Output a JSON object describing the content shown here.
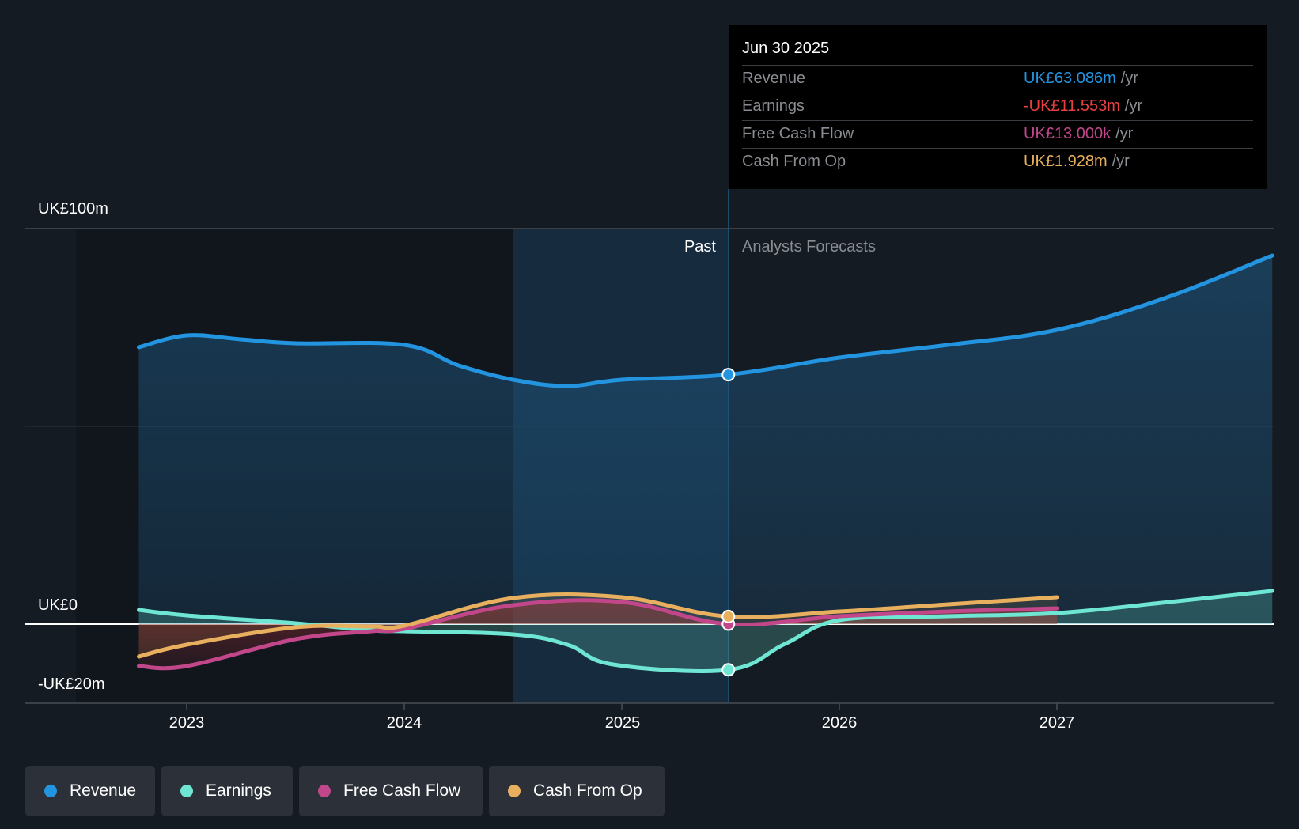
{
  "chart_data": {
    "type": "area",
    "title": "",
    "xlabel": "",
    "ylabel": "",
    "currency_unit": "UK£m",
    "ylim": [
      -20,
      100
    ],
    "y_ticks": [
      {
        "value": 100,
        "label": "UK£100m"
      },
      {
        "value": 0,
        "label": "UK£0"
      },
      {
        "value": -20,
        "label": "-UK£20m"
      }
    ],
    "xlim": [
      2022.5,
      2027.99
    ],
    "x_ticks": [
      2023,
      2024,
      2025,
      2026,
      2027
    ],
    "x_tick_labels": [
      "2023",
      "2024",
      "2025",
      "2026",
      "2027"
    ],
    "grid": true,
    "past_region": {
      "start": 2024.5,
      "end": 2025.49,
      "label": "Past"
    },
    "forecast_label": "Analysts Forecasts",
    "legend_placement": "bottom",
    "series": [
      {
        "name": "Revenue",
        "color": "#2394df",
        "x": [
          2022.78,
          2023.0,
          2023.25,
          2023.5,
          2024.0,
          2024.25,
          2024.5,
          2024.75,
          2025.0,
          2025.49,
          2026.0,
          2026.5,
          2027.0,
          2027.5,
          2027.99
        ],
        "values": [
          70.0,
          73.0,
          72.0,
          71.0,
          70.6,
          65.4,
          61.8,
          60.2,
          61.8,
          63.086,
          67.4,
          70.6,
          74.4,
          82.5,
          93.2
        ]
      },
      {
        "name": "Earnings",
        "color": "#6ee6d3",
        "x": [
          2022.78,
          2023.0,
          2023.5,
          2023.85,
          2024.0,
          2024.5,
          2024.75,
          2024.96,
          2025.49,
          2025.75,
          2026.0,
          2026.5,
          2027.0,
          2027.5,
          2027.99
        ],
        "values": [
          3.6,
          2.2,
          0.2,
          -1.6,
          -1.8,
          -2.6,
          -5.2,
          -10.2,
          -11.553,
          -5.0,
          1.0,
          2.0,
          2.8,
          5.5,
          8.4
        ]
      },
      {
        "name": "Free Cash Flow",
        "color": "#c2478a",
        "x": [
          2022.78,
          2023.0,
          2023.5,
          2023.85,
          2024.0,
          2024.5,
          2025.0,
          2025.49,
          2026.0,
          2026.5,
          2027.0
        ],
        "values": [
          -10.6,
          -10.6,
          -3.8,
          -1.8,
          -1.2,
          4.8,
          5.6,
          0.013,
          2.0,
          3.2,
          4.0
        ]
      },
      {
        "name": "Cash From Op",
        "color": "#e8b05e",
        "x": [
          2022.78,
          2023.0,
          2023.5,
          2023.85,
          2024.0,
          2024.5,
          2025.0,
          2025.49,
          2026.0,
          2026.5,
          2027.0
        ],
        "values": [
          -8.2,
          -5.2,
          -0.8,
          -0.6,
          -0.4,
          6.6,
          6.8,
          1.928,
          3.2,
          5.0,
          6.8
        ]
      }
    ],
    "highlight_x": 2025.49
  },
  "tooltip": {
    "date": "Jun 30 2025",
    "rows": [
      {
        "label": "Revenue",
        "value": "UK£63.086m",
        "unit": "/yr",
        "color": "#2394df"
      },
      {
        "label": "Earnings",
        "value": "-UK£11.553m",
        "unit": "/yr",
        "color": "#e9403f"
      },
      {
        "label": "Free Cash Flow",
        "value": "UK£13.000k",
        "unit": "/yr",
        "color": "#c2478a"
      },
      {
        "label": "Cash From Op",
        "value": "UK£1.928m",
        "unit": "/yr",
        "color": "#e8b05e"
      }
    ]
  },
  "legend": [
    {
      "label": "Revenue",
      "color": "#2394df"
    },
    {
      "label": "Earnings",
      "color": "#6ee6d3"
    },
    {
      "label": "Free Cash Flow",
      "color": "#c2478a"
    },
    {
      "label": "Cash From Op",
      "color": "#e8b05e"
    }
  ]
}
